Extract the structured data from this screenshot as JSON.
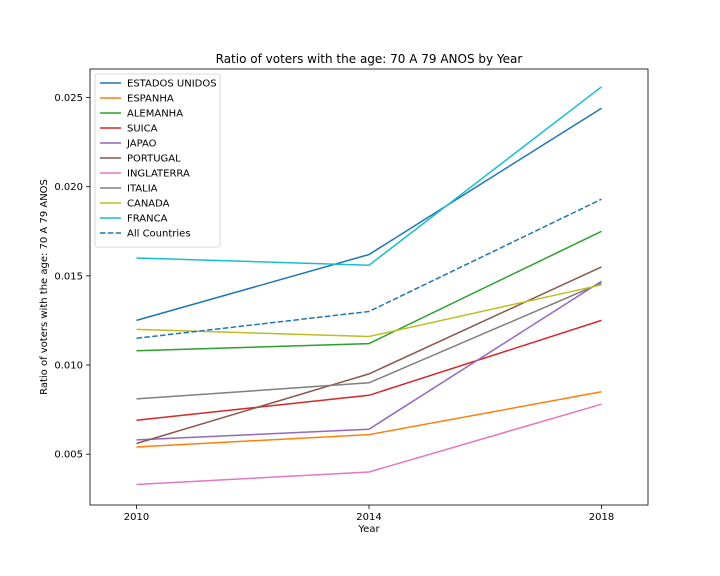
{
  "chart_data": {
    "type": "line",
    "title": "Ratio of voters with the age: 70 A 79 ANOS by Year",
    "xlabel": "Year",
    "ylabel": "Ratio of voters with the age: 70 A 79 ANOS",
    "x": [
      2010,
      2014,
      2018
    ],
    "x_ticks": [
      "2010",
      "2014",
      "2018"
    ],
    "y_ticks": [
      "0.005",
      "0.010",
      "0.015",
      "0.020",
      "0.025"
    ],
    "y_tick_values": [
      0.005,
      0.01,
      0.015,
      0.02,
      0.025
    ],
    "xlim": [
      2009.2,
      2018.8
    ],
    "ylim": [
      0.00215,
      0.0266
    ],
    "grid": false,
    "legend_position": "upper-left",
    "series": [
      {
        "name": "ESTADOS UNIDOS",
        "color": "#1f77b4",
        "dashed": false,
        "values": [
          0.0125,
          0.0162,
          0.0244
        ]
      },
      {
        "name": "ESPANHA",
        "color": "#ff7f0e",
        "dashed": false,
        "values": [
          0.0054,
          0.0061,
          0.0085
        ]
      },
      {
        "name": "ALEMANHA",
        "color": "#2ca02c",
        "dashed": false,
        "values": [
          0.0108,
          0.0112,
          0.0175
        ]
      },
      {
        "name": "SUICA",
        "color": "#d62728",
        "dashed": false,
        "values": [
          0.0069,
          0.0083,
          0.0125
        ]
      },
      {
        "name": "JAPAO",
        "color": "#9467bd",
        "dashed": false,
        "values": [
          0.0058,
          0.0064,
          0.0147
        ]
      },
      {
        "name": "PORTUGAL",
        "color": "#8c564b",
        "dashed": false,
        "values": [
          0.0056,
          0.0095,
          0.0155
        ]
      },
      {
        "name": "INGLATERRA",
        "color": "#e377c2",
        "dashed": false,
        "values": [
          0.0033,
          0.004,
          0.0078
        ]
      },
      {
        "name": "ITALIA",
        "color": "#7f7f7f",
        "dashed": false,
        "values": [
          0.0081,
          0.009,
          0.0146
        ]
      },
      {
        "name": "CANADA",
        "color": "#bcbd22",
        "dashed": false,
        "values": [
          0.012,
          0.0116,
          0.0145
        ]
      },
      {
        "name": "FRANCA",
        "color": "#17becf",
        "dashed": false,
        "values": [
          0.016,
          0.0156,
          0.0256
        ]
      },
      {
        "name": "All Countries",
        "color": "#1f77b4",
        "dashed": true,
        "values": [
          0.0115,
          0.013,
          0.0193
        ]
      }
    ]
  }
}
